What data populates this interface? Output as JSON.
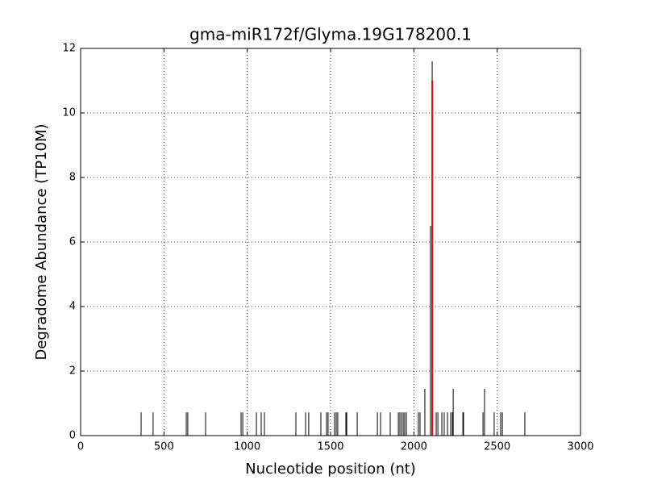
{
  "chart_data": {
    "type": "vlines",
    "title": "gma-miR172f/Glyma.19G178200.1",
    "xlabel": "Nucleotide position (nt)",
    "ylabel": "Degradome Abundance (TP10M)",
    "xlim": [
      0,
      3000
    ],
    "xticks": [
      0,
      500,
      1000,
      1500,
      2000,
      2500,
      3000
    ],
    "ylim": [
      0,
      12
    ],
    "yticks": [
      0,
      2,
      4,
      6,
      8,
      10,
      12
    ],
    "grid": true,
    "series": [
      {
        "color": "#000000",
        "x": [
          363,
          435,
          634,
          643,
          750,
          963,
          973,
          1055,
          1084,
          1103,
          1292,
          1350,
          1369,
          1442,
          1476,
          1485,
          1524,
          1534,
          1543,
          1592,
          1597,
          1660,
          1781,
          1800,
          1858,
          1907,
          1916,
          1926,
          1936,
          1945,
          1955,
          2027,
          2037,
          2066,
          2100,
          2110,
          2134,
          2144,
          2168,
          2182,
          2202,
          2221,
          2231,
          2236,
          2294,
          2298,
          2415,
          2424,
          2482,
          2521,
          2531,
          2666
        ],
        "values": [
          0.72,
          0.72,
          0.72,
          0.72,
          0.72,
          0.72,
          0.72,
          0.72,
          0.72,
          0.72,
          0.72,
          0.72,
          0.72,
          0.72,
          0.72,
          0.72,
          0.72,
          0.72,
          0.72,
          0.72,
          0.72,
          0.72,
          0.72,
          0.72,
          0.72,
          0.72,
          0.72,
          0.72,
          0.72,
          0.72,
          0.72,
          0.72,
          0.72,
          1.45,
          6.5,
          11.6,
          0.72,
          0.72,
          0.72,
          0.72,
          0.72,
          0.72,
          0.72,
          1.45,
          0.72,
          0.72,
          0.72,
          1.45,
          0.72,
          0.72,
          0.72,
          0.72
        ]
      },
      {
        "color": "#ff0000",
        "width": 2,
        "x": [
          2110
        ],
        "values": [
          11
        ]
      }
    ]
  }
}
